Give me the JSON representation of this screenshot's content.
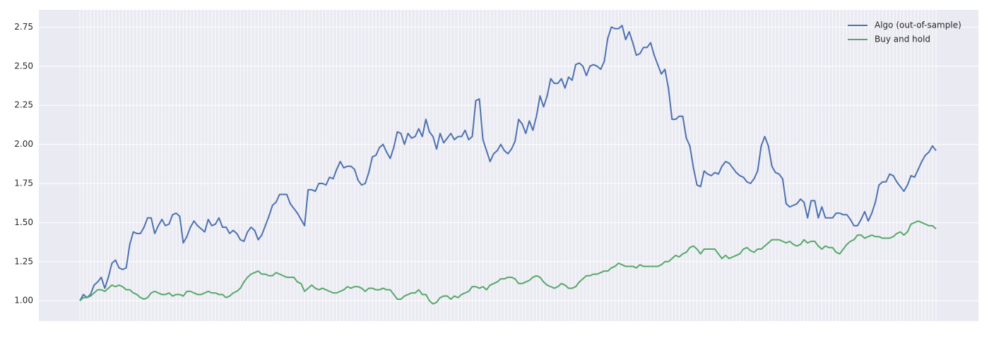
{
  "chart_data": {
    "type": "line",
    "categories": [
      null,
      null,
      null,
      null,
      null,
      null,
      null,
      null,
      null,
      null,
      null,
      null,
      null,
      null,
      null,
      null,
      null,
      null,
      null,
      null,
      null,
      null,
      null,
      null,
      null,
      null,
      null,
      null,
      null,
      null,
      null,
      null,
      null,
      null,
      null,
      null,
      null,
      null,
      null,
      null,
      null,
      null,
      null,
      null,
      null,
      null,
      null,
      null,
      null,
      null,
      null,
      null,
      null,
      null,
      null,
      null,
      null,
      null,
      null,
      null,
      null,
      null,
      null,
      null,
      null,
      null,
      null,
      null,
      null,
      null,
      null,
      null,
      null,
      null,
      null,
      null,
      null,
      null,
      null,
      null,
      null,
      null,
      null,
      null,
      null,
      null,
      null,
      null,
      null,
      null,
      null,
      null,
      null,
      null,
      null,
      null,
      null,
      null,
      null,
      null,
      null,
      null,
      null,
      null,
      null,
      null,
      null,
      null,
      null,
      null,
      null,
      null,
      null,
      null,
      null,
      null,
      null,
      null,
      null,
      null,
      null,
      null,
      null,
      null,
      null,
      null,
      null,
      null,
      null,
      null,
      null,
      null,
      null,
      null,
      null,
      null,
      null,
      null,
      null,
      null,
      null,
      null,
      null,
      null,
      null,
      null,
      null,
      null,
      null,
      null,
      null,
      null,
      null,
      null,
      null,
      null,
      null,
      null,
      null,
      null,
      null,
      null,
      null,
      null,
      null,
      null,
      null,
      null,
      null,
      null,
      null,
      null,
      null,
      null,
      null,
      null,
      null,
      null,
      null,
      null,
      null,
      null,
      null,
      null,
      null,
      null,
      null,
      null,
      null,
      null,
      null,
      null,
      null,
      null,
      null,
      null,
      null,
      null,
      null,
      null,
      null,
      null,
      null,
      null,
      null,
      null,
      null,
      null,
      null,
      null,
      null,
      null,
      null,
      null,
      null,
      null,
      null,
      null,
      null,
      null,
      null,
      null,
      null,
      null,
      null,
      null,
      null,
      null,
      null,
      null,
      null,
      null,
      null,
      null,
      null,
      null,
      null,
      null,
      null,
      null,
      null
    ],
    "series": [
      {
        "name": "Algo (out-of-sample)",
        "color": "#4c72b0",
        "values": [
          1.0,
          1.04,
          1.02,
          1.04,
          1.1,
          1.12,
          1.15,
          1.08,
          1.15,
          1.24,
          1.26,
          1.21,
          1.2,
          1.21,
          1.36,
          1.44,
          1.43,
          1.43,
          1.47,
          1.53,
          1.53,
          1.43,
          1.48,
          1.52,
          1.48,
          1.49,
          1.55,
          1.56,
          1.54,
          1.37,
          1.41,
          1.47,
          1.51,
          1.48,
          1.46,
          1.44,
          1.52,
          1.48,
          1.49,
          1.53,
          1.47,
          1.47,
          1.43,
          1.45,
          1.43,
          1.39,
          1.38,
          1.44,
          1.47,
          1.45,
          1.39,
          1.42,
          1.48,
          1.54,
          1.61,
          1.63,
          1.68,
          1.68,
          1.68,
          1.62,
          1.59,
          1.56,
          1.52,
          1.48,
          1.71,
          1.71,
          1.7,
          1.75,
          1.75,
          1.74,
          1.79,
          1.78,
          1.84,
          1.89,
          1.85,
          1.86,
          1.86,
          1.84,
          1.77,
          1.74,
          1.75,
          1.82,
          1.92,
          1.93,
          1.98,
          2.0,
          1.95,
          1.91,
          1.98,
          2.08,
          2.07,
          2.0,
          2.07,
          2.04,
          2.05,
          2.1,
          2.05,
          2.16,
          2.08,
          2.05,
          1.97,
          2.07,
          2.01,
          2.04,
          2.07,
          2.03,
          2.05,
          2.05,
          2.09,
          2.03,
          2.05,
          2.28,
          2.29,
          2.03,
          1.96,
          1.89,
          1.94,
          1.96,
          2.0,
          1.96,
          1.94,
          1.97,
          2.02,
          2.16,
          2.13,
          2.07,
          2.15,
          2.09,
          2.18,
          2.31,
          2.24,
          2.31,
          2.42,
          2.39,
          2.39,
          2.42,
          2.36,
          2.43,
          2.41,
          2.51,
          2.52,
          2.5,
          2.44,
          2.5,
          2.51,
          2.5,
          2.48,
          2.53,
          2.68,
          2.75,
          2.74,
          2.74,
          2.76,
          2.67,
          2.72,
          2.65,
          2.57,
          2.58,
          2.62,
          2.62,
          2.65,
          2.57,
          2.51,
          2.45,
          2.48,
          2.36,
          2.16,
          2.16,
          2.18,
          2.18,
          2.04,
          1.99,
          1.85,
          1.74,
          1.73,
          1.83,
          1.81,
          1.8,
          1.82,
          1.81,
          1.86,
          1.89,
          1.88,
          1.85,
          1.82,
          1.8,
          1.79,
          1.76,
          1.75,
          1.78,
          1.83,
          1.99,
          2.05,
          1.99,
          1.86,
          1.82,
          1.81,
          1.78,
          1.62,
          1.6,
          1.61,
          1.62,
          1.65,
          1.63,
          1.53,
          1.64,
          1.64,
          1.53,
          1.6,
          1.53,
          1.53,
          1.53,
          1.56,
          1.56,
          1.55,
          1.55,
          1.52,
          1.48,
          1.48,
          1.52,
          1.57,
          1.51,
          1.56,
          1.63,
          1.74,
          1.76,
          1.76,
          1.81,
          1.8,
          1.76,
          1.73,
          1.7,
          1.74,
          1.8,
          1.79,
          1.84,
          1.89,
          1.93,
          1.95,
          1.99,
          1.96
        ]
      },
      {
        "name": "Buy and hold",
        "color": "#55a868",
        "values": [
          1.0,
          1.02,
          1.02,
          1.03,
          1.05,
          1.07,
          1.07,
          1.06,
          1.08,
          1.1,
          1.09,
          1.1,
          1.09,
          1.07,
          1.07,
          1.05,
          1.04,
          1.02,
          1.01,
          1.02,
          1.05,
          1.06,
          1.05,
          1.04,
          1.04,
          1.05,
          1.03,
          1.04,
          1.04,
          1.03,
          1.06,
          1.06,
          1.05,
          1.04,
          1.04,
          1.05,
          1.06,
          1.05,
          1.05,
          1.04,
          1.04,
          1.02,
          1.03,
          1.05,
          1.06,
          1.08,
          1.12,
          1.15,
          1.17,
          1.18,
          1.19,
          1.17,
          1.17,
          1.16,
          1.16,
          1.18,
          1.17,
          1.16,
          1.15,
          1.15,
          1.15,
          1.12,
          1.11,
          1.06,
          1.08,
          1.1,
          1.08,
          1.07,
          1.08,
          1.07,
          1.06,
          1.05,
          1.05,
          1.06,
          1.07,
          1.09,
          1.08,
          1.09,
          1.09,
          1.08,
          1.06,
          1.08,
          1.08,
          1.07,
          1.07,
          1.08,
          1.07,
          1.07,
          1.04,
          1.01,
          1.01,
          1.03,
          1.04,
          1.05,
          1.05,
          1.07,
          1.04,
          1.04,
          1.0,
          0.98,
          0.99,
          1.02,
          1.03,
          1.03,
          1.01,
          1.03,
          1.02,
          1.04,
          1.05,
          1.06,
          1.09,
          1.09,
          1.08,
          1.09,
          1.07,
          1.1,
          1.11,
          1.12,
          1.14,
          1.14,
          1.15,
          1.15,
          1.14,
          1.11,
          1.11,
          1.12,
          1.13,
          1.15,
          1.16,
          1.15,
          1.12,
          1.1,
          1.09,
          1.08,
          1.09,
          1.11,
          1.1,
          1.08,
          1.08,
          1.09,
          1.12,
          1.14,
          1.16,
          1.16,
          1.17,
          1.17,
          1.18,
          1.19,
          1.19,
          1.21,
          1.22,
          1.24,
          1.23,
          1.22,
          1.22,
          1.22,
          1.21,
          1.23,
          1.22,
          1.22,
          1.22,
          1.22,
          1.22,
          1.23,
          1.25,
          1.25,
          1.27,
          1.29,
          1.28,
          1.3,
          1.31,
          1.34,
          1.35,
          1.33,
          1.3,
          1.33,
          1.33,
          1.33,
          1.33,
          1.3,
          1.27,
          1.29,
          1.27,
          1.28,
          1.29,
          1.3,
          1.33,
          1.34,
          1.32,
          1.31,
          1.33,
          1.33,
          1.35,
          1.37,
          1.39,
          1.39,
          1.39,
          1.38,
          1.37,
          1.38,
          1.36,
          1.35,
          1.36,
          1.39,
          1.37,
          1.38,
          1.38,
          1.35,
          1.33,
          1.35,
          1.34,
          1.34,
          1.31,
          1.3,
          1.33,
          1.36,
          1.38,
          1.39,
          1.42,
          1.42,
          1.4,
          1.41,
          1.42,
          1.41,
          1.41,
          1.4,
          1.4,
          1.4,
          1.41,
          1.43,
          1.44,
          1.42,
          1.44,
          1.49,
          1.5,
          1.51,
          1.5,
          1.49,
          1.48,
          1.48,
          1.46
        ]
      }
    ],
    "ylim": [
      0.87,
      2.86
    ],
    "yticks": [
      {
        "value": 1,
        "label": "1.00"
      },
      {
        "value": 1.25,
        "label": "1.25"
      },
      {
        "value": 1.5,
        "label": "1.50"
      },
      {
        "value": 1.75,
        "label": "1.75"
      },
      {
        "value": 2,
        "label": "2.00"
      },
      {
        "value": 2.25,
        "label": "2.25"
      },
      {
        "value": 2.5,
        "label": "2.50"
      },
      {
        "value": 2.75,
        "label": "2.75"
      }
    ],
    "grid": true,
    "legend": "upper right",
    "background": "#eaeaf2"
  }
}
